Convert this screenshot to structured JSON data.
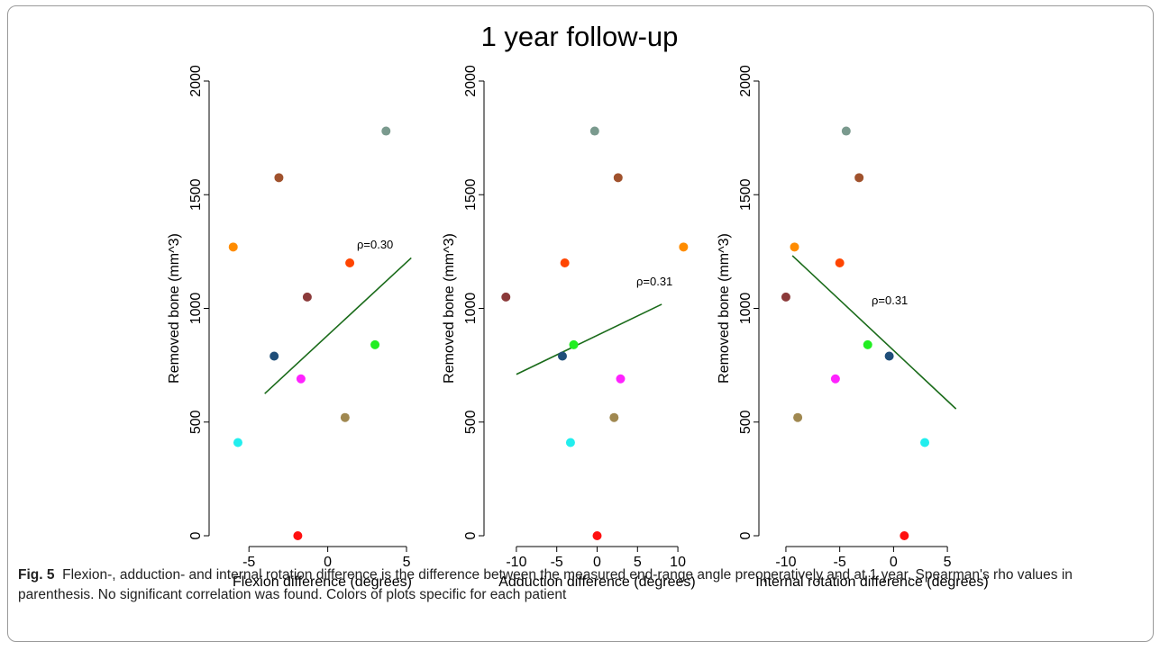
{
  "figure": {
    "super_title": "1 year follow-up",
    "caption_label": "Fig. 5",
    "caption_text": "Flexion-, adduction- and internal rotation difference is the difference between the measured end-range angle preoperatively and at 1 year. Spearman's rho values in parenthesis. No significant correlation was found. Colors of plots specific for each patient"
  },
  "colors": {
    "fit_line": "#1a6b1a",
    "axis": "#000000"
  },
  "chart_data": [
    {
      "type": "scatter",
      "title": "",
      "xlabel": "Flexion difference (degrees)",
      "ylabel": "Removed bone (mm^3)",
      "xlim": [
        -6.5,
        5.8
      ],
      "ylim": [
        0,
        2000
      ],
      "xticks": [
        -5,
        0,
        5
      ],
      "yticks": [
        0,
        500,
        1000,
        1500,
        2000
      ],
      "grid": false,
      "annotation": "ρ=0.30",
      "fit_line": {
        "x": [
          -4.0,
          5.3
        ],
        "y": [
          625,
          1222
        ]
      },
      "points": [
        {
          "x": 3.7,
          "y": 1780,
          "color": "#7a9a8e"
        },
        {
          "x": -3.1,
          "y": 1575,
          "color": "#a0522d"
        },
        {
          "x": -6.0,
          "y": 1270,
          "color": "#ff8c00"
        },
        {
          "x": 1.4,
          "y": 1200,
          "color": "#ff4500"
        },
        {
          "x": -1.3,
          "y": 1050,
          "color": "#8b3a3a"
        },
        {
          "x": 3.0,
          "y": 840,
          "color": "#22ee22"
        },
        {
          "x": -3.4,
          "y": 790,
          "color": "#1f4e79"
        },
        {
          "x": -1.7,
          "y": 690,
          "color": "#ff22ff"
        },
        {
          "x": 1.1,
          "y": 520,
          "color": "#a08850"
        },
        {
          "x": -5.7,
          "y": 410,
          "color": "#22eeee"
        },
        {
          "x": -1.9,
          "y": 0,
          "color": "#ff1010"
        }
      ]
    },
    {
      "type": "scatter",
      "title": "",
      "xlabel": "Adduction difference (degrees)",
      "ylabel": "Removed bone (mm^3)",
      "xlim": [
        -12,
        12
      ],
      "ylim": [
        0,
        2000
      ],
      "xticks": [
        -10,
        -5,
        0,
        5,
        10
      ],
      "yticks": [
        0,
        500,
        1000,
        1500,
        2000
      ],
      "grid": false,
      "annotation": "ρ=0.31",
      "fit_line": {
        "x": [
          -10.0,
          8.0
        ],
        "y": [
          710,
          1018
        ]
      },
      "points": [
        {
          "x": -0.3,
          "y": 1780,
          "color": "#7a9a8e"
        },
        {
          "x": 2.6,
          "y": 1575,
          "color": "#a0522d"
        },
        {
          "x": 10.7,
          "y": 1270,
          "color": "#ff8c00"
        },
        {
          "x": -4.0,
          "y": 1200,
          "color": "#ff4500"
        },
        {
          "x": -11.3,
          "y": 1050,
          "color": "#8b3a3a"
        },
        {
          "x": -2.9,
          "y": 840,
          "color": "#22ee22"
        },
        {
          "x": -4.3,
          "y": 790,
          "color": "#1f4e79"
        },
        {
          "x": 2.9,
          "y": 690,
          "color": "#ff22ff"
        },
        {
          "x": 2.1,
          "y": 520,
          "color": "#a08850"
        },
        {
          "x": -3.3,
          "y": 410,
          "color": "#22eeee"
        },
        {
          "x": 0.0,
          "y": 0,
          "color": "#ff1010"
        }
      ]
    },
    {
      "type": "scatter",
      "title": "",
      "xlabel": "Internal rotation difference (degrees)",
      "ylabel": "Removed bone (mm^3)",
      "xlim": [
        -11,
        7
      ],
      "ylim": [
        0,
        2000
      ],
      "xticks": [
        -10,
        -5,
        0,
        5
      ],
      "yticks": [
        0,
        500,
        1000,
        1500,
        2000
      ],
      "grid": false,
      "annotation": "ρ=0.31",
      "fit_line": {
        "x": [
          -9.4,
          5.8
        ],
        "y": [
          1232,
          558
        ]
      },
      "points": [
        {
          "x": -4.4,
          "y": 1780,
          "color": "#7a9a8e"
        },
        {
          "x": -3.2,
          "y": 1575,
          "color": "#a0522d"
        },
        {
          "x": -9.2,
          "y": 1270,
          "color": "#ff8c00"
        },
        {
          "x": -5.0,
          "y": 1200,
          "color": "#ff4500"
        },
        {
          "x": -10.0,
          "y": 1050,
          "color": "#8b3a3a"
        },
        {
          "x": -2.4,
          "y": 840,
          "color": "#22ee22"
        },
        {
          "x": -0.4,
          "y": 790,
          "color": "#1f4e79"
        },
        {
          "x": -5.4,
          "y": 690,
          "color": "#ff22ff"
        },
        {
          "x": -8.9,
          "y": 520,
          "color": "#a08850"
        },
        {
          "x": 2.9,
          "y": 410,
          "color": "#22eeee"
        },
        {
          "x": 1.0,
          "y": 0,
          "color": "#ff1010"
        }
      ]
    }
  ]
}
